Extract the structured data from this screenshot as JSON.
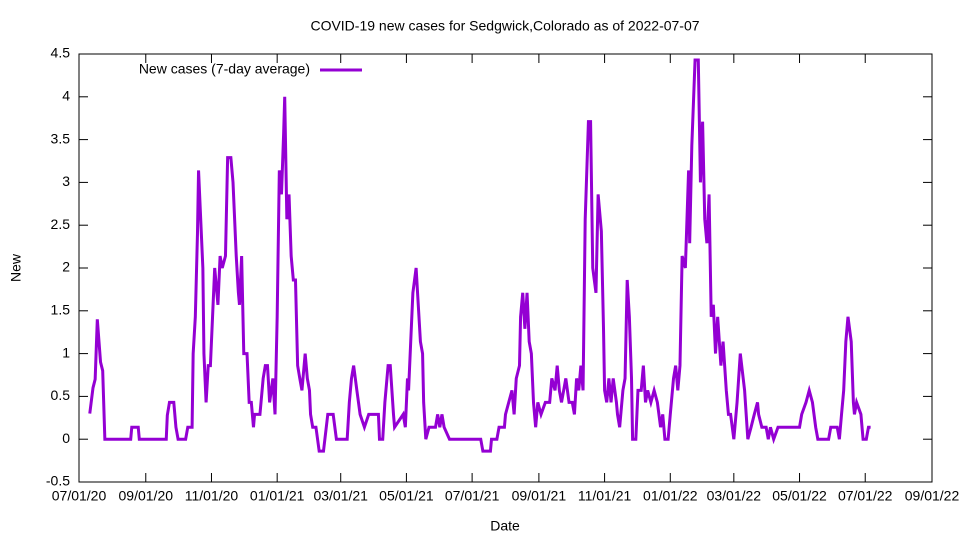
{
  "chart_data": {
    "type": "line",
    "title": "COVID-19 new cases for Sedgwick,Colorado as of 2022-07-07",
    "x_label": "Date",
    "y_label": "New",
    "xlim": [
      "2020-07-01",
      "2022-09-01"
    ],
    "xticks": [
      {
        "value": "2020-07-01",
        "label": "07/01/20"
      },
      {
        "value": "2020-09-01",
        "label": "09/01/20"
      },
      {
        "value": "2020-11-01",
        "label": "11/01/20"
      },
      {
        "value": "2021-01-01",
        "label": "01/01/21"
      },
      {
        "value": "2021-03-01",
        "label": "03/01/21"
      },
      {
        "value": "2021-05-01",
        "label": "05/01/21"
      },
      {
        "value": "2021-07-01",
        "label": "07/01/21"
      },
      {
        "value": "2021-09-01",
        "label": "09/01/21"
      },
      {
        "value": "2021-11-01",
        "label": "11/01/21"
      },
      {
        "value": "2022-01-01",
        "label": "01/01/22"
      },
      {
        "value": "2022-03-01",
        "label": "03/01/22"
      },
      {
        "value": "2022-05-01",
        "label": "05/01/22"
      },
      {
        "value": "2022-07-01",
        "label": "07/01/22"
      },
      {
        "value": "2022-09-01",
        "label": "09/01/22"
      }
    ],
    "ylim": [
      -0.5,
      4.5
    ],
    "yticks": [
      -0.5,
      0,
      0.5,
      1,
      1.5,
      2,
      2.5,
      3,
      3.5,
      4,
      4.5
    ],
    "legend": "top-left",
    "series": [
      {
        "name": "New cases (7-day average)",
        "color": "#9400d3",
        "x": [
          "2020-07-11",
          "2020-07-14",
          "2020-07-16",
          "2020-07-18",
          "2020-07-21",
          "2020-07-23",
          "2020-07-25",
          "2020-08-18",
          "2020-08-19",
          "2020-08-25",
          "2020-08-26",
          "2020-09-20",
          "2020-09-21",
          "2020-09-23",
          "2020-09-27",
          "2020-09-29",
          "2020-10-01",
          "2020-10-08",
          "2020-10-10",
          "2020-10-14",
          "2020-10-15",
          "2020-10-17",
          "2020-10-19",
          "2020-10-20",
          "2020-10-22",
          "2020-10-24",
          "2020-10-25",
          "2020-10-27",
          "2020-10-29",
          "2020-10-31",
          "2020-11-02",
          "2020-11-04",
          "2020-11-07",
          "2020-11-09",
          "2020-11-11",
          "2020-11-14",
          "2020-11-16",
          "2020-11-19",
          "2020-11-21",
          "2020-11-24",
          "2020-11-26",
          "2020-11-27",
          "2020-11-29",
          "2020-12-01",
          "2020-12-04",
          "2020-12-06",
          "2020-12-08",
          "2020-12-10",
          "2020-12-11",
          "2020-12-16",
          "2020-12-19",
          "2020-12-21",
          "2020-12-23",
          "2020-12-25",
          "2020-12-28",
          "2020-12-30",
          "2021-01-01",
          "2021-01-03",
          "2021-01-05",
          "2021-01-07",
          "2021-01-08",
          "2021-01-10",
          "2021-01-12",
          "2021-01-14",
          "2021-01-16",
          "2021-01-18",
          "2021-01-20",
          "2021-01-22",
          "2021-01-24",
          "2021-01-27",
          "2021-01-29",
          "2021-01-31",
          "2021-02-01",
          "2021-02-03",
          "2021-02-06",
          "2021-02-09",
          "2021-02-13",
          "2021-02-17",
          "2021-02-22",
          "2021-02-25",
          "2021-03-07",
          "2021-03-09",
          "2021-03-11",
          "2021-03-13",
          "2021-03-16",
          "2021-03-19",
          "2021-03-23",
          "2021-03-27",
          "2021-04-05",
          "2021-04-06",
          "2021-04-09",
          "2021-04-11",
          "2021-04-14",
          "2021-04-16",
          "2021-04-19",
          "2021-04-20",
          "2021-04-28",
          "2021-04-30",
          "2021-05-02",
          "2021-05-03",
          "2021-05-05",
          "2021-05-07",
          "2021-05-10",
          "2021-05-12",
          "2021-05-14",
          "2021-05-16",
          "2021-05-17",
          "2021-05-19",
          "2021-05-22",
          "2021-05-28",
          "2021-05-30",
          "2021-06-01",
          "2021-06-03",
          "2021-06-05",
          "2021-06-10",
          "2021-07-09",
          "2021-07-11",
          "2021-07-18",
          "2021-07-19",
          "2021-07-24",
          "2021-07-26",
          "2021-07-31",
          "2021-08-01",
          "2021-08-04",
          "2021-08-07",
          "2021-08-09",
          "2021-08-11",
          "2021-08-14",
          "2021-08-15",
          "2021-08-17",
          "2021-08-19",
          "2021-08-21",
          "2021-08-23",
          "2021-08-25",
          "2021-08-27",
          "2021-08-29",
          "2021-08-31",
          "2021-09-03",
          "2021-09-07",
          "2021-09-11",
          "2021-09-13",
          "2021-09-16",
          "2021-09-18",
          "2021-09-20",
          "2021-09-22",
          "2021-09-26",
          "2021-09-29",
          "2021-10-02",
          "2021-10-04",
          "2021-10-06",
          "2021-10-08",
          "2021-10-10",
          "2021-10-12",
          "2021-10-14",
          "2021-10-17",
          "2021-10-19",
          "2021-10-21",
          "2021-10-24",
          "2021-10-26",
          "2021-10-29",
          "2021-10-31",
          "2021-11-01",
          "2021-11-03",
          "2021-11-05",
          "2021-11-07",
          "2021-11-09",
          "2021-11-12",
          "2021-11-13",
          "2021-11-15",
          "2021-11-18",
          "2021-11-20",
          "2021-11-22",
          "2021-11-24",
          "2021-11-26",
          "2021-11-27",
          "2021-11-30",
          "2021-12-02",
          "2021-12-05",
          "2021-12-07",
          "2021-12-09",
          "2021-12-11",
          "2021-12-14",
          "2021-12-17",
          "2021-12-20",
          "2021-12-23",
          "2021-12-25",
          "2021-12-27",
          "2021-12-30",
          "2022-01-01",
          "2022-01-04",
          "2022-01-06",
          "2022-01-08",
          "2022-01-10",
          "2022-01-12",
          "2022-01-15",
          "2022-01-18",
          "2022-01-19",
          "2022-01-21",
          "2022-01-24",
          "2022-01-27",
          "2022-01-29",
          "2022-01-31",
          "2022-02-02",
          "2022-02-04",
          "2022-02-06",
          "2022-02-08",
          "2022-02-10",
          "2022-02-12",
          "2022-02-14",
          "2022-02-17",
          "2022-02-19",
          "2022-02-22",
          "2022-02-24",
          "2022-02-26",
          "2022-03-01",
          "2022-03-04",
          "2022-03-07",
          "2022-03-11",
          "2022-03-14",
          "2022-03-17",
          "2022-03-20",
          "2022-03-23",
          "2022-03-24",
          "2022-03-27",
          "2022-03-31",
          "2022-04-02",
          "2022-04-04",
          "2022-04-07",
          "2022-04-11",
          "2022-04-14",
          "2022-05-01",
          "2022-05-03",
          "2022-05-07",
          "2022-05-10",
          "2022-05-13",
          "2022-05-16",
          "2022-05-18",
          "2022-05-28",
          "2022-05-30",
          "2022-06-05",
          "2022-06-07",
          "2022-06-09",
          "2022-06-11",
          "2022-06-13",
          "2022-06-15",
          "2022-06-18",
          "2022-06-20",
          "2022-06-21",
          "2022-06-23",
          "2022-06-27",
          "2022-06-29",
          "2022-07-02",
          "2022-07-04",
          "2022-07-06"
        ],
        "values": [
          0.3,
          0.6,
          0.7,
          1.4,
          0.9,
          0.8,
          0,
          0,
          0.14,
          0.14,
          0,
          0,
          0.28,
          0.43,
          0.43,
          0.14,
          0,
          0,
          0.14,
          0.14,
          1.0,
          1.43,
          2.4,
          3.14,
          2.57,
          2.0,
          1.0,
          0.43,
          0.86,
          0.86,
          1.43,
          2.0,
          1.57,
          2.14,
          2.0,
          2.14,
          3.29,
          3.29,
          3.0,
          2.14,
          1.71,
          1.57,
          2.14,
          1.0,
          1.0,
          0.43,
          0.43,
          0.14,
          0.29,
          0.29,
          0.71,
          0.86,
          0.86,
          0.43,
          0.71,
          0.29,
          1.43,
          3.14,
          2.86,
          3.57,
          4.0,
          2.57,
          2.86,
          2.14,
          1.86,
          1.86,
          0.86,
          0.71,
          0.57,
          1.0,
          0.71,
          0.57,
          0.29,
          0.14,
          0.14,
          -0.14,
          -0.14,
          0.29,
          0.29,
          0,
          0,
          0.43,
          0.71,
          0.86,
          0.57,
          0.29,
          0.14,
          0.29,
          0.29,
          0,
          0,
          0.43,
          0.86,
          0.86,
          0.29,
          0.14,
          0.29,
          0.14,
          0.71,
          0.57,
          1.14,
          1.71,
          2.0,
          1.57,
          1.14,
          1.0,
          0.43,
          0,
          0.14,
          0.14,
          0.29,
          0.14,
          0.29,
          0.14,
          0,
          0,
          -0.14,
          -0.14,
          0,
          0,
          0.14,
          0.14,
          0.29,
          0.43,
          0.57,
          0.29,
          0.71,
          0.86,
          1.43,
          1.71,
          1.29,
          1.71,
          1.14,
          1.0,
          0.43,
          0.14,
          0.43,
          0.29,
          0.43,
          0.43,
          0.71,
          0.57,
          0.86,
          0.57,
          0.43,
          0.71,
          0.43,
          0.43,
          0.29,
          0.71,
          0.57,
          0.86,
          0.57,
          2.57,
          3.71,
          3.71,
          2.0,
          1.71,
          2.86,
          2.43,
          1.29,
          0.57,
          0.43,
          0.71,
          0.43,
          0.71,
          0.43,
          0.29,
          0.14,
          0.57,
          0.71,
          1.86,
          1.43,
          0.71,
          0,
          0,
          0.57,
          0.57,
          0.86,
          0.43,
          0.57,
          0.43,
          0.57,
          0.43,
          0.14,
          0.29,
          0,
          0,
          0.29,
          0.71,
          0.86,
          0.57,
          0.86,
          2.14,
          2.0,
          3.14,
          2.29,
          3.43,
          4.43,
          4.43,
          3.0,
          3.71,
          2.57,
          2.29,
          2.86,
          1.43,
          1.57,
          1.0,
          1.43,
          0.86,
          1.14,
          0.57,
          0.29,
          0.29,
          0,
          0.43,
          1.0,
          0.57,
          0,
          0.14,
          0.29,
          0.43,
          0.29,
          0.14,
          0.14,
          0,
          0.14,
          0,
          0.14,
          0.14,
          0.14,
          0.29,
          0.43,
          0.57,
          0.43,
          0.14,
          0,
          0,
          0.14,
          0.14,
          0,
          0.29,
          0.57,
          1.14,
          1.43,
          1.14,
          0.43,
          0.29,
          0.43,
          0.29,
          0,
          0,
          0.14,
          0.14
        ]
      }
    ]
  }
}
